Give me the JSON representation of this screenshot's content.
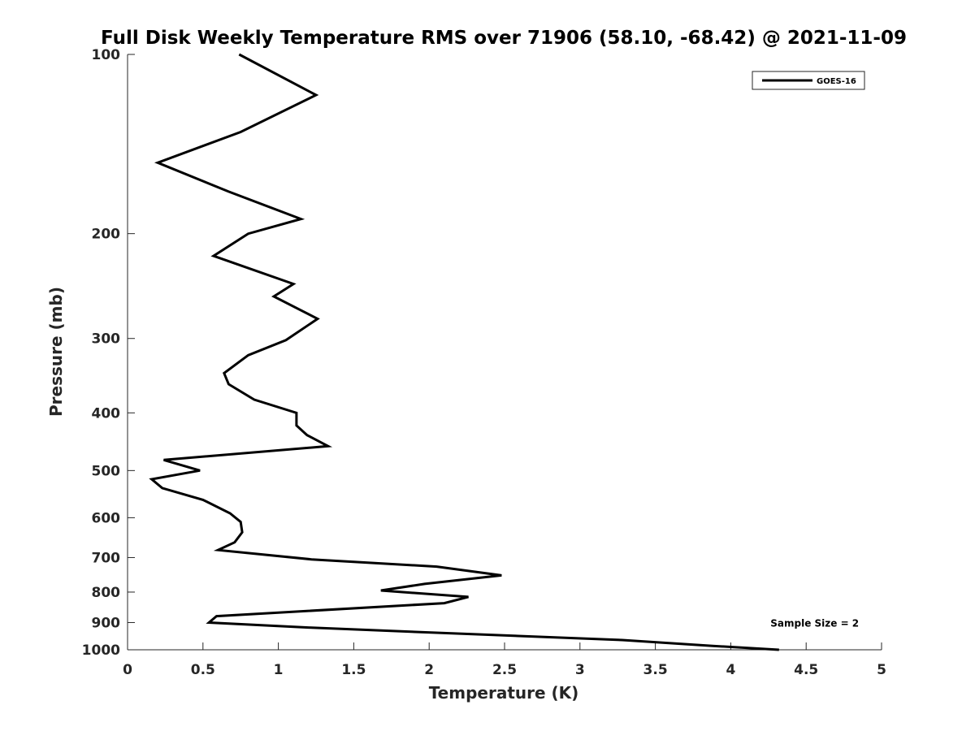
{
  "chart_data": {
    "type": "line",
    "title": "Full Disk Weekly Temperature RMS over 71906 (58.10, -68.42) @ 2021-11-09",
    "xlabel": "Temperature (K)",
    "ylabel": "Pressure (mb)",
    "xlim": [
      0,
      5
    ],
    "ylim": [
      1000,
      100
    ],
    "yscale": "log",
    "y_reversed": true,
    "xticks": [
      0,
      0.5,
      1,
      1.5,
      2,
      2.5,
      3,
      3.5,
      4,
      4.5,
      5
    ],
    "xtick_labels": [
      "0",
      "0.5",
      "1",
      "1.5",
      "2",
      "2.5",
      "3",
      "3.5",
      "4",
      "4.5",
      "5"
    ],
    "yticks": [
      100,
      200,
      300,
      400,
      500,
      600,
      700,
      800,
      900,
      1000
    ],
    "ytick_labels": [
      "100",
      "200",
      "300",
      "400",
      "500",
      "600",
      "700",
      "800",
      "900",
      "1000"
    ],
    "grid": false,
    "legend_position": "top-right",
    "series": [
      {
        "name": "GOES-16",
        "color": "#000000",
        "x": [
          0.74,
          1.25,
          0.75,
          0.2,
          0.67,
          1.15,
          0.8,
          0.57,
          1.1,
          0.97,
          1.26,
          1.05,
          0.8,
          0.64,
          0.67,
          0.84,
          1.12,
          1.12,
          1.19,
          1.33,
          0.24,
          0.48,
          0.16,
          0.23,
          0.5,
          0.68,
          0.75,
          0.76,
          0.71,
          0.6,
          1.22,
          2.05,
          2.48,
          1.97,
          1.68,
          2.26,
          2.1,
          0.59,
          0.54,
          1.22,
          2.22,
          3.28,
          3.88,
          4.32
        ],
        "y": [
          100,
          117,
          135,
          152,
          170,
          189,
          200,
          218,
          243,
          255,
          278,
          302,
          320,
          343,
          358,
          380,
          400,
          420,
          436,
          455,
          480,
          500,
          517,
          535,
          560,
          590,
          610,
          635,
          660,
          680,
          705,
          725,
          750,
          775,
          795,
          815,
          835,
          878,
          900,
          918,
          940,
          963,
          985,
          1000
        ]
      }
    ],
    "annotations": [
      {
        "text": "Sample Size = 2",
        "x": 4.85,
        "y": 900
      }
    ]
  }
}
